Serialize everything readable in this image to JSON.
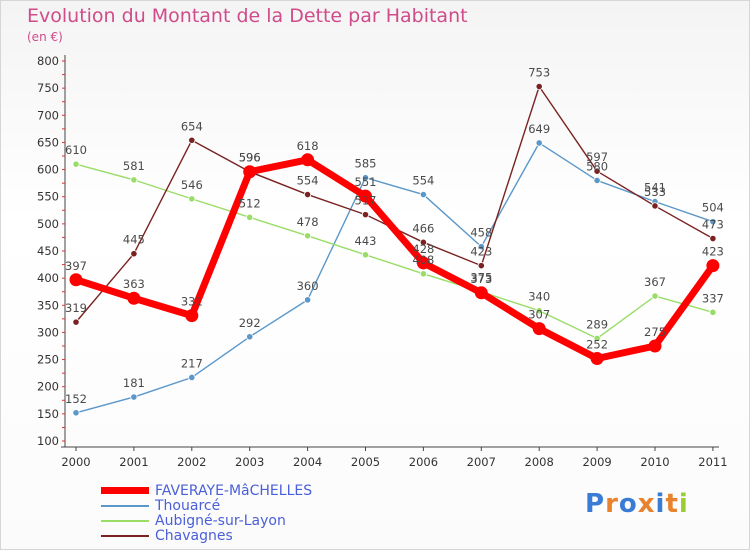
{
  "title": "Evolution du Montant de la Dette par Habitant",
  "unit_label": "(en €)",
  "logo": {
    "text": "Proxiti",
    "colors": [
      "#3a7bd5",
      "#e8822d",
      "#3a7bd5",
      "#e8822d",
      "#3a7bd5",
      "#e8822d",
      "#9acd32"
    ]
  },
  "chart_data": {
    "type": "line",
    "x": [
      "2000",
      "2001",
      "2002",
      "2003",
      "2004",
      "2005",
      "2006",
      "2007",
      "2008",
      "2009",
      "2010",
      "2011"
    ],
    "ylim": [
      100,
      800
    ],
    "yticks": [
      100,
      150,
      200,
      250,
      300,
      350,
      400,
      450,
      500,
      550,
      600,
      650,
      700,
      750,
      800
    ],
    "grid": false,
    "legend_position": "bottom-left",
    "series": [
      {
        "name": "FAVERAYE-MâCHELLES",
        "color": "#ff0000",
        "values": [
          397,
          363,
          331,
          596,
          618,
          551,
          428,
          373,
          307,
          252,
          275,
          423
        ]
      },
      {
        "name": "Thouarcé",
        "color": "#5b97c9",
        "values": [
          152,
          181,
          217,
          292,
          360,
          585,
          554,
          458,
          649,
          580,
          541,
          504
        ]
      },
      {
        "name": "Aubigné-sur-Layon",
        "color": "#99dd66",
        "values": [
          610,
          581,
          546,
          512,
          478,
          443,
          408,
          375,
          340,
          289,
          367,
          337
        ]
      },
      {
        "name": "Chavagnes",
        "color": "#7a2222",
        "values": [
          319,
          445,
          654,
          596,
          554,
          517,
          466,
          423,
          753,
          597,
          533,
          473
        ]
      }
    ]
  }
}
